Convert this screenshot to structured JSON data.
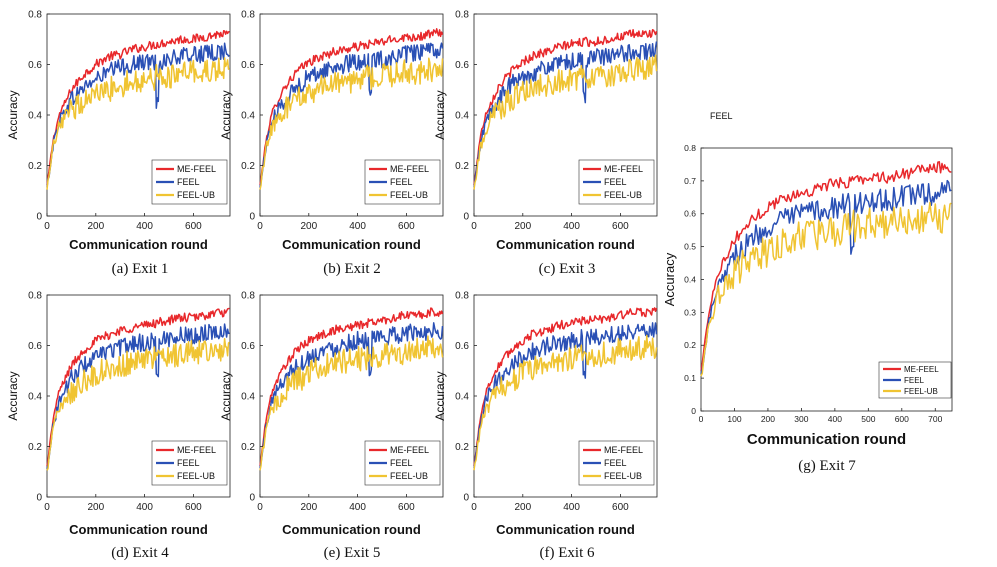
{
  "figure_note": "FEEL",
  "colors": {
    "me_feel": "#e8282b",
    "feel": "#2a50b5",
    "feel_ub": "#f0c432"
  },
  "chart_data": [
    {
      "type": "line",
      "caption": "(a) Exit 1",
      "xlabel": "Communication round",
      "ylabel": "Accuracy",
      "xlim": [
        0,
        750
      ],
      "ylim": [
        0,
        0.8
      ],
      "xticks": [
        "0",
        "200",
        "400",
        "600"
      ],
      "yticks": [
        "0",
        "0.2",
        "0.4",
        "0.6",
        "0.8"
      ],
      "legend": {
        "position": "bottom-right",
        "entries": [
          "ME-FEEL",
          "FEEL",
          "FEEL-UB"
        ]
      },
      "series": [
        {
          "name": "ME-FEEL",
          "x": [
            0,
            25,
            50,
            100,
            150,
            200,
            250,
            300,
            350,
            400,
            450,
            500,
            550,
            600,
            650,
            700,
            750
          ],
          "values": [
            0.12,
            0.3,
            0.4,
            0.5,
            0.56,
            0.6,
            0.63,
            0.64,
            0.66,
            0.67,
            0.68,
            0.69,
            0.7,
            0.7,
            0.71,
            0.72,
            0.72
          ]
        },
        {
          "name": "FEEL",
          "x": [
            0,
            25,
            50,
            100,
            150,
            200,
            250,
            300,
            350,
            400,
            450,
            500,
            550,
            600,
            650,
            700,
            750
          ],
          "values": [
            0.11,
            0.28,
            0.38,
            0.46,
            0.51,
            0.54,
            0.57,
            0.59,
            0.6,
            0.61,
            0.61,
            0.62,
            0.63,
            0.64,
            0.64,
            0.65,
            0.66
          ]
        },
        {
          "name": "FEEL-UB",
          "x": [
            0,
            25,
            50,
            100,
            150,
            200,
            250,
            300,
            350,
            400,
            450,
            500,
            550,
            600,
            650,
            700,
            750
          ],
          "values": [
            0.1,
            0.27,
            0.35,
            0.42,
            0.46,
            0.48,
            0.5,
            0.52,
            0.53,
            0.54,
            0.55,
            0.55,
            0.56,
            0.57,
            0.57,
            0.58,
            0.58
          ]
        }
      ]
    },
    {
      "type": "line",
      "caption": "(b) Exit 2",
      "xlabel": "Communication round",
      "ylabel": "Accuracy",
      "xlim": [
        0,
        750
      ],
      "ylim": [
        0,
        0.8
      ],
      "xticks": [
        "0",
        "200",
        "400",
        "600"
      ],
      "yticks": [
        "0",
        "0.2",
        "0.4",
        "0.6",
        "0.8"
      ],
      "legend": {
        "position": "bottom-right",
        "entries": [
          "ME-FEEL",
          "FEEL",
          "FEEL-UB"
        ]
      },
      "series": [
        {
          "name": "ME-FEEL",
          "x": [
            0,
            25,
            50,
            100,
            150,
            200,
            250,
            300,
            350,
            400,
            450,
            500,
            550,
            600,
            650,
            700,
            750
          ],
          "values": [
            0.12,
            0.3,
            0.41,
            0.51,
            0.57,
            0.61,
            0.63,
            0.65,
            0.66,
            0.67,
            0.68,
            0.69,
            0.7,
            0.71,
            0.71,
            0.72,
            0.73
          ]
        },
        {
          "name": "FEEL",
          "x": [
            0,
            25,
            50,
            100,
            150,
            200,
            250,
            300,
            350,
            400,
            450,
            500,
            550,
            600,
            650,
            700,
            750
          ],
          "values": [
            0.11,
            0.28,
            0.38,
            0.46,
            0.51,
            0.55,
            0.57,
            0.59,
            0.6,
            0.61,
            0.62,
            0.62,
            0.63,
            0.64,
            0.65,
            0.65,
            0.66
          ]
        },
        {
          "name": "FEEL-UB",
          "x": [
            0,
            25,
            50,
            100,
            150,
            200,
            250,
            300,
            350,
            400,
            450,
            500,
            550,
            600,
            650,
            700,
            750
          ],
          "values": [
            0.1,
            0.27,
            0.35,
            0.42,
            0.46,
            0.49,
            0.51,
            0.52,
            0.53,
            0.54,
            0.55,
            0.56,
            0.56,
            0.57,
            0.57,
            0.58,
            0.58
          ]
        }
      ]
    },
    {
      "type": "line",
      "caption": "(c) Exit 3",
      "xlabel": "Communication round",
      "ylabel": "Accuracy",
      "xlim": [
        0,
        750
      ],
      "ylim": [
        0,
        0.8
      ],
      "xticks": [
        "0",
        "200",
        "400",
        "600"
      ],
      "yticks": [
        "0",
        "0.2",
        "0.4",
        "0.6",
        "0.8"
      ],
      "legend": {
        "position": "bottom-right",
        "entries": [
          "ME-FEEL",
          "FEEL",
          "FEEL-UB"
        ]
      },
      "series": [
        {
          "name": "ME-FEEL",
          "x": [
            0,
            25,
            50,
            100,
            150,
            200,
            250,
            300,
            350,
            400,
            450,
            500,
            550,
            600,
            650,
            700,
            750
          ],
          "values": [
            0.12,
            0.31,
            0.41,
            0.51,
            0.57,
            0.61,
            0.64,
            0.65,
            0.67,
            0.68,
            0.69,
            0.69,
            0.7,
            0.71,
            0.72,
            0.72,
            0.73
          ]
        },
        {
          "name": "FEEL",
          "x": [
            0,
            25,
            50,
            100,
            150,
            200,
            250,
            300,
            350,
            400,
            450,
            500,
            550,
            600,
            650,
            700,
            750
          ],
          "values": [
            0.11,
            0.28,
            0.38,
            0.46,
            0.52,
            0.55,
            0.57,
            0.59,
            0.6,
            0.61,
            0.62,
            0.63,
            0.63,
            0.64,
            0.65,
            0.65,
            0.66
          ]
        },
        {
          "name": "FEEL-UB",
          "x": [
            0,
            25,
            50,
            100,
            150,
            200,
            250,
            300,
            350,
            400,
            450,
            500,
            550,
            600,
            650,
            700,
            750
          ],
          "values": [
            0.1,
            0.27,
            0.35,
            0.42,
            0.46,
            0.49,
            0.51,
            0.52,
            0.53,
            0.54,
            0.55,
            0.56,
            0.56,
            0.57,
            0.58,
            0.58,
            0.59
          ]
        }
      ]
    },
    {
      "type": "line",
      "caption": "(d) Exit 4",
      "xlabel": "Communication round",
      "ylabel": "Accuracy",
      "xlim": [
        0,
        750
      ],
      "ylim": [
        0,
        0.8
      ],
      "xticks": [
        "0",
        "200",
        "400",
        "600"
      ],
      "yticks": [
        "0",
        "0.2",
        "0.4",
        "0.6",
        "0.8"
      ],
      "legend": {
        "position": "bottom-right",
        "entries": [
          "ME-FEEL",
          "FEEL",
          "FEEL-UB"
        ]
      },
      "series": [
        {
          "name": "ME-FEEL",
          "x": [
            0,
            25,
            50,
            100,
            150,
            200,
            250,
            300,
            350,
            400,
            450,
            500,
            550,
            600,
            650,
            700,
            750
          ],
          "values": [
            0.12,
            0.31,
            0.42,
            0.52,
            0.58,
            0.62,
            0.64,
            0.66,
            0.67,
            0.68,
            0.69,
            0.7,
            0.71,
            0.71,
            0.72,
            0.73,
            0.73
          ]
        },
        {
          "name": "FEEL",
          "x": [
            0,
            25,
            50,
            100,
            150,
            200,
            250,
            300,
            350,
            400,
            450,
            500,
            550,
            600,
            650,
            700,
            750
          ],
          "values": [
            0.11,
            0.28,
            0.38,
            0.47,
            0.52,
            0.55,
            0.58,
            0.59,
            0.61,
            0.61,
            0.62,
            0.63,
            0.64,
            0.64,
            0.65,
            0.66,
            0.66
          ]
        },
        {
          "name": "FEEL-UB",
          "x": [
            0,
            25,
            50,
            100,
            150,
            200,
            250,
            300,
            350,
            400,
            450,
            500,
            550,
            600,
            650,
            700,
            750
          ],
          "values": [
            0.1,
            0.27,
            0.35,
            0.42,
            0.46,
            0.49,
            0.51,
            0.52,
            0.54,
            0.54,
            0.55,
            0.56,
            0.57,
            0.57,
            0.58,
            0.58,
            0.59
          ]
        }
      ]
    },
    {
      "type": "line",
      "caption": "(e) Exit 5",
      "xlabel": "Communication round",
      "ylabel": "Accuracy",
      "xlim": [
        0,
        750
      ],
      "ylim": [
        0,
        0.8
      ],
      "xticks": [
        "0",
        "200",
        "400",
        "600"
      ],
      "yticks": [
        "0",
        "0.2",
        "0.4",
        "0.6",
        "0.8"
      ],
      "legend": {
        "position": "bottom-right",
        "entries": [
          "ME-FEEL",
          "FEEL",
          "FEEL-UB"
        ]
      },
      "series": [
        {
          "name": "ME-FEEL",
          "x": [
            0,
            25,
            50,
            100,
            150,
            200,
            250,
            300,
            350,
            400,
            450,
            500,
            550,
            600,
            650,
            700,
            750
          ],
          "values": [
            0.12,
            0.31,
            0.42,
            0.52,
            0.58,
            0.62,
            0.64,
            0.66,
            0.67,
            0.68,
            0.69,
            0.7,
            0.71,
            0.72,
            0.72,
            0.73,
            0.73
          ]
        },
        {
          "name": "FEEL",
          "x": [
            0,
            25,
            50,
            100,
            150,
            200,
            250,
            300,
            350,
            400,
            450,
            500,
            550,
            600,
            650,
            700,
            750
          ],
          "values": [
            0.11,
            0.28,
            0.39,
            0.47,
            0.52,
            0.55,
            0.58,
            0.59,
            0.61,
            0.62,
            0.62,
            0.63,
            0.64,
            0.65,
            0.65,
            0.66,
            0.66
          ]
        },
        {
          "name": "FEEL-UB",
          "x": [
            0,
            25,
            50,
            100,
            150,
            200,
            250,
            300,
            350,
            400,
            450,
            500,
            550,
            600,
            650,
            700,
            750
          ],
          "values": [
            0.1,
            0.27,
            0.35,
            0.42,
            0.46,
            0.49,
            0.51,
            0.53,
            0.54,
            0.55,
            0.55,
            0.56,
            0.57,
            0.57,
            0.58,
            0.59,
            0.59
          ]
        }
      ]
    },
    {
      "type": "line",
      "caption": "(f) Exit 6",
      "xlabel": "Communication round",
      "ylabel": "Accuracy",
      "xlim": [
        0,
        750
      ],
      "ylim": [
        0,
        0.8
      ],
      "xticks": [
        "0",
        "200",
        "400",
        "600"
      ],
      "yticks": [
        "0",
        "0.2",
        "0.4",
        "0.6",
        "0.8"
      ],
      "legend": {
        "position": "bottom-right",
        "entries": [
          "ME-FEEL",
          "FEEL",
          "FEEL-UB"
        ]
      },
      "series": [
        {
          "name": "ME-FEEL",
          "x": [
            0,
            25,
            50,
            100,
            150,
            200,
            250,
            300,
            350,
            400,
            450,
            500,
            550,
            600,
            650,
            700,
            750
          ],
          "values": [
            0.12,
            0.31,
            0.42,
            0.52,
            0.58,
            0.62,
            0.65,
            0.66,
            0.68,
            0.69,
            0.7,
            0.7,
            0.71,
            0.72,
            0.73,
            0.73,
            0.74
          ]
        },
        {
          "name": "FEEL",
          "x": [
            0,
            25,
            50,
            100,
            150,
            200,
            250,
            300,
            350,
            400,
            450,
            500,
            550,
            600,
            650,
            700,
            750
          ],
          "values": [
            0.11,
            0.28,
            0.39,
            0.47,
            0.52,
            0.56,
            0.58,
            0.6,
            0.61,
            0.62,
            0.63,
            0.63,
            0.64,
            0.65,
            0.66,
            0.66,
            0.67
          ]
        },
        {
          "name": "FEEL-UB",
          "x": [
            0,
            25,
            50,
            100,
            150,
            200,
            250,
            300,
            350,
            400,
            450,
            500,
            550,
            600,
            650,
            700,
            750
          ],
          "values": [
            0.1,
            0.27,
            0.35,
            0.42,
            0.46,
            0.49,
            0.51,
            0.53,
            0.54,
            0.55,
            0.56,
            0.56,
            0.57,
            0.58,
            0.58,
            0.59,
            0.59
          ]
        }
      ]
    },
    {
      "type": "line",
      "caption": "(g) Exit 7",
      "xlabel": "Communication round",
      "ylabel": "Accuracy",
      "xlim": [
        0,
        750
      ],
      "ylim": [
        0,
        0.8
      ],
      "xticks": [
        "0",
        "100",
        "200",
        "300",
        "400",
        "500",
        "600",
        "700"
      ],
      "yticks": [
        "0",
        "0.1",
        "0.2",
        "0.3",
        "0.4",
        "0.5",
        "0.6",
        "0.7",
        "0.8"
      ],
      "legend": {
        "position": "bottom-right",
        "entries": [
          "ME-FEEL",
          "FEEL",
          "FEEL-UB"
        ]
      },
      "series": [
        {
          "name": "ME-FEEL",
          "x": [
            0,
            25,
            50,
            100,
            150,
            200,
            250,
            300,
            350,
            400,
            450,
            500,
            550,
            600,
            650,
            700,
            750
          ],
          "values": [
            0.12,
            0.31,
            0.42,
            0.52,
            0.58,
            0.62,
            0.65,
            0.66,
            0.68,
            0.69,
            0.7,
            0.71,
            0.71,
            0.72,
            0.73,
            0.74,
            0.74
          ]
        },
        {
          "name": "FEEL",
          "x": [
            0,
            25,
            50,
            100,
            150,
            200,
            250,
            300,
            350,
            400,
            450,
            500,
            550,
            600,
            650,
            700,
            750
          ],
          "values": [
            0.11,
            0.28,
            0.39,
            0.47,
            0.52,
            0.56,
            0.58,
            0.6,
            0.61,
            0.62,
            0.63,
            0.64,
            0.64,
            0.65,
            0.66,
            0.66,
            0.67
          ]
        },
        {
          "name": "FEEL-UB",
          "x": [
            0,
            25,
            50,
            100,
            150,
            200,
            250,
            300,
            350,
            400,
            450,
            500,
            550,
            600,
            650,
            700,
            750
          ],
          "values": [
            0.1,
            0.27,
            0.35,
            0.42,
            0.46,
            0.49,
            0.52,
            0.53,
            0.54,
            0.55,
            0.56,
            0.57,
            0.57,
            0.58,
            0.58,
            0.59,
            0.59
          ]
        }
      ]
    }
  ]
}
